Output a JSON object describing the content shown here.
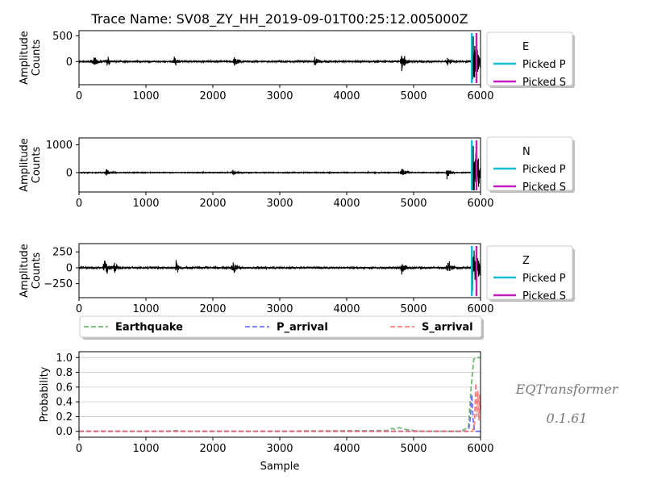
{
  "chart_data": [
    {
      "type": "line",
      "component": "E",
      "title": "Trace Name: SV08_ZY_HH_2019-09-01T00:25:12.005000Z",
      "xlabel": "",
      "ylabel": "Amplitude\nCounts",
      "xlim": [
        0,
        6000
      ],
      "ylim": [
        -450,
        600
      ],
      "xticks": [
        0,
        1000,
        2000,
        3000,
        4000,
        5000,
        6000
      ],
      "yticks": [
        0,
        500
      ],
      "picked_p": 5870,
      "picked_s": 5940,
      "legend": [
        "E",
        "Picked P",
        "Picked S"
      ]
    },
    {
      "type": "line",
      "component": "N",
      "xlabel": "",
      "ylabel": "Amplitude\nCounts",
      "xlim": [
        0,
        6000
      ],
      "ylim": [
        -700,
        1250
      ],
      "xticks": [
        0,
        1000,
        2000,
        3000,
        4000,
        5000,
        6000
      ],
      "yticks": [
        0,
        1000
      ],
      "picked_p": 5870,
      "picked_s": 5940,
      "legend": [
        "N",
        "Picked P",
        "Picked S"
      ]
    },
    {
      "type": "line",
      "component": "Z",
      "xlabel": "",
      "ylabel": "Amplitude\nCounts",
      "xlim": [
        0,
        6000
      ],
      "ylim": [
        -470,
        380
      ],
      "xticks": [
        0,
        1000,
        2000,
        3000,
        4000,
        5000,
        6000
      ],
      "yticks": [
        -250,
        0,
        250
      ],
      "picked_p": 5870,
      "picked_s": 5940,
      "legend": [
        "Z",
        "Picked P",
        "Picked S"
      ]
    },
    {
      "type": "line",
      "xlabel": "Sample",
      "ylabel": "Probability",
      "xlim": [
        0,
        6000
      ],
      "ylim": [
        -0.08,
        1.08
      ],
      "xticks": [
        0,
        1000,
        2000,
        3000,
        4000,
        5000,
        6000
      ],
      "yticks": [
        0.0,
        0.2,
        0.4,
        0.6,
        0.8,
        1.0
      ],
      "grid": true,
      "legend": [
        "Earthquake",
        "P_arrival",
        "S_arrival"
      ],
      "series": [
        {
          "name": "Earthquake",
          "x": [
            0,
            1300,
            1450,
            1600,
            3200,
            3300,
            4600,
            4680,
            4720,
            4780,
            4860,
            4920,
            5000,
            5100,
            5700,
            5820,
            5860,
            5900,
            5940,
            6000
          ],
          "values": [
            0,
            0,
            0.01,
            0,
            0,
            0.005,
            0.01,
            0.04,
            0.025,
            0.05,
            0.03,
            0.02,
            0.01,
            0,
            0,
            0.05,
            0.6,
            0.98,
            1.0,
            1.0
          ]
        },
        {
          "name": "P_arrival",
          "x": [
            0,
            5820,
            5850,
            5870,
            5890,
            5910,
            6000
          ],
          "values": [
            0,
            0,
            0.2,
            0.5,
            0.15,
            0,
            0
          ]
        },
        {
          "name": "S_arrival",
          "x": [
            0,
            5880,
            5910,
            5930,
            5945,
            5960,
            5975,
            5990,
            6000
          ],
          "values": [
            0,
            0,
            0.1,
            0.65,
            0.2,
            0.55,
            0.15,
            0.5,
            0.3
          ]
        }
      ]
    }
  ],
  "colors": {
    "trace": "#000000",
    "picked_p": "#17becf",
    "picked_s": "#c31cc4",
    "earthquake": "#5aaa5a",
    "p_arrival": "#5a5aff",
    "s_arrival": "#ff6a6a"
  },
  "labels": {
    "picked_p": "Picked P",
    "picked_s": "Picked S"
  },
  "watermark": {
    "name": "EQTransformer",
    "version": "0.1.61"
  }
}
